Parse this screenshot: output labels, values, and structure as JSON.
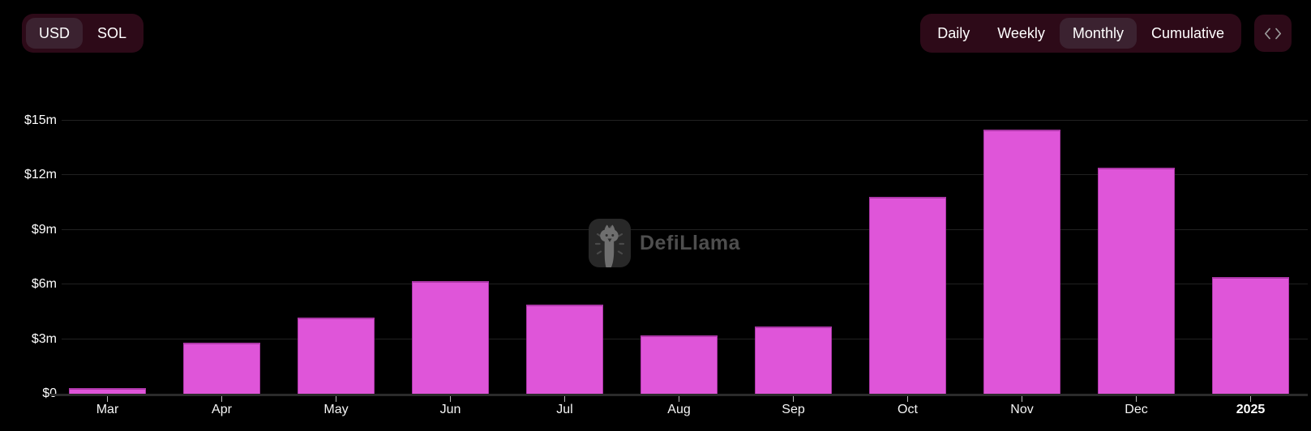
{
  "toolbar": {
    "currency_toggle": {
      "options": [
        "USD",
        "SOL"
      ],
      "selected": "USD"
    },
    "interval_toggle": {
      "options": [
        "Daily",
        "Weekly",
        "Monthly",
        "Cumulative"
      ],
      "selected": "Monthly"
    },
    "embed_button_icon": "code-icon"
  },
  "watermark": {
    "text": "DefiLlama"
  },
  "chart_data": {
    "type": "bar",
    "title": "",
    "xlabel": "",
    "ylabel": "",
    "categories": [
      "Mar",
      "Apr",
      "May",
      "Jun",
      "Jul",
      "Aug",
      "Sep",
      "Oct",
      "Nov",
      "Dec",
      "2025"
    ],
    "values": [
      0.3,
      2.8,
      4.2,
      6.2,
      4.9,
      3.2,
      3.7,
      10.8,
      14.5,
      12.4,
      6.4
    ],
    "unit": "USD millions",
    "emphasized_category": "2025",
    "y_ticks": [
      {
        "label": "$0",
        "value": 0
      },
      {
        "label": "$3m",
        "value": 3
      },
      {
        "label": "$6m",
        "value": 6
      },
      {
        "label": "$9m",
        "value": 9
      },
      {
        "label": "$12m",
        "value": 12
      },
      {
        "label": "$15m",
        "value": 15
      }
    ],
    "y_axis_max": 15,
    "ylim": [
      0,
      15.5
    ],
    "grid": true,
    "legend_position": "none",
    "bar_color": "#df55d9",
    "bar_border_color": "#ad37a8"
  }
}
